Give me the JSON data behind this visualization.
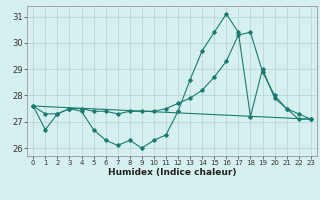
{
  "xlabel": "Humidex (Indice chaleur)",
  "background_color": "#d6f0ef",
  "grid_color": "#b8d8d8",
  "line_color": "#1a7a6e",
  "xlim": [
    -0.5,
    23.5
  ],
  "ylim": [
    25.7,
    31.4
  ],
  "yticks": [
    26,
    27,
    28,
    29,
    30,
    31
  ],
  "xticks": [
    0,
    1,
    2,
    3,
    4,
    5,
    6,
    7,
    8,
    9,
    10,
    11,
    12,
    13,
    14,
    15,
    16,
    17,
    18,
    19,
    20,
    21,
    22,
    23
  ],
  "series1_x": [
    0,
    1,
    2,
    3,
    4,
    5,
    6,
    7,
    8,
    9,
    10,
    11,
    12,
    13,
    14,
    15,
    16,
    17,
    18,
    19,
    20,
    21,
    22,
    23
  ],
  "series1_y": [
    27.6,
    26.7,
    27.3,
    27.5,
    27.4,
    26.7,
    26.3,
    26.1,
    26.3,
    26.0,
    26.3,
    26.5,
    27.4,
    28.6,
    29.7,
    30.4,
    31.1,
    30.4,
    27.2,
    29.0,
    27.9,
    27.5,
    27.1,
    27.1
  ],
  "series2_x": [
    0,
    1,
    2,
    3,
    4,
    5,
    6,
    7,
    8,
    9,
    10,
    11,
    12,
    13,
    14,
    15,
    16,
    17,
    18,
    19,
    20,
    21,
    22,
    23
  ],
  "series2_y": [
    27.6,
    27.3,
    27.3,
    27.5,
    27.5,
    27.4,
    27.4,
    27.3,
    27.4,
    27.4,
    27.4,
    27.5,
    27.7,
    27.9,
    28.2,
    28.7,
    29.3,
    30.3,
    30.4,
    28.9,
    28.0,
    27.5,
    27.3,
    27.1
  ],
  "series3_x": [
    0,
    23
  ],
  "series3_y": [
    27.6,
    27.1
  ]
}
